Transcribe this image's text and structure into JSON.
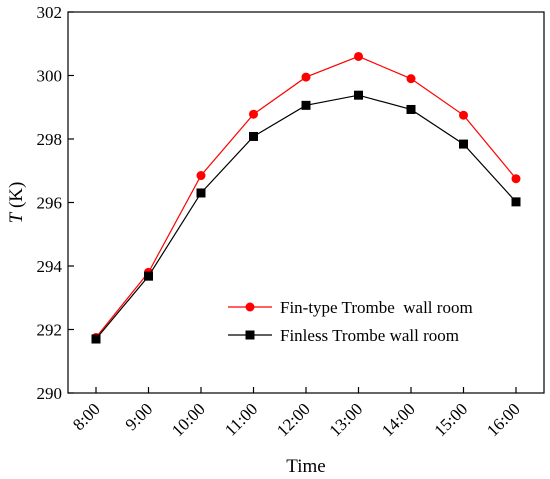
{
  "chart_data": {
    "type": "line",
    "xlabel": "Time",
    "ylabel": "T (K)",
    "ylabel_italic_part": "T",
    "ylabel_rest": " (K)",
    "categories": [
      "8:00",
      "9:00",
      "10:00",
      "11:00",
      "12:00",
      "13:00",
      "14:00",
      "15:00",
      "16:00"
    ],
    "ylim": [
      290,
      302
    ],
    "yticks": [
      290,
      292,
      294,
      296,
      298,
      300,
      302
    ],
    "grid": false,
    "legend_position": "lower-right",
    "series": [
      {
        "name": "Fin-type Trombe  wall room",
        "color": "#ff0000",
        "marker": "circle",
        "values": [
          291.75,
          293.8,
          296.85,
          298.78,
          299.95,
          300.6,
          299.9,
          298.75,
          296.75
        ]
      },
      {
        "name": "Finless Trombe wall room",
        "color": "#000000",
        "marker": "square",
        "values": [
          291.7,
          293.68,
          296.3,
          298.08,
          299.06,
          299.38,
          298.93,
          297.84,
          296.02
        ]
      }
    ]
  }
}
